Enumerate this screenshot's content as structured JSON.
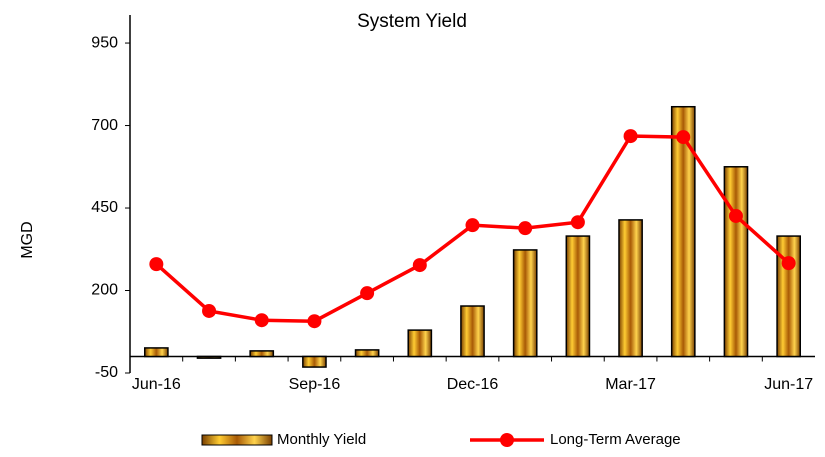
{
  "chart_data": {
    "type": "bar_line",
    "title": "System Yield",
    "y_label": "MGD",
    "categories": [
      "Jun-16",
      null,
      null,
      "Sep-16",
      null,
      null,
      "Dec-16",
      null,
      null,
      "Mar-17",
      null,
      null,
      "Jun-17"
    ],
    "series": [
      {
        "name": "Monthly Yield",
        "type": "bar",
        "color": "#c8860a",
        "values": [
          26,
          -5,
          17,
          -32,
          20,
          80,
          153,
          323,
          365,
          414,
          757,
          575,
          365
        ]
      },
      {
        "name": "Long-Term Average",
        "type": "line",
        "color": "#ff0000",
        "values": [
          280,
          138,
          110,
          107,
          192,
          277,
          398,
          389,
          407,
          668,
          665,
          426,
          283
        ]
      }
    ],
    "ylim": [
      -50,
      1035
    ],
    "yticks": [
      -50,
      200,
      450,
      700,
      950
    ],
    "grid": false
  }
}
